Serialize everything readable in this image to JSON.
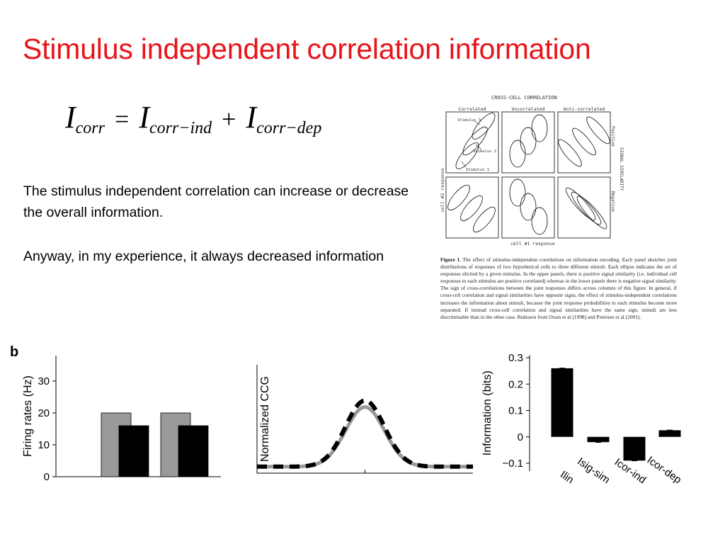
{
  "slide": {
    "title": "Stimulus independent correlation information",
    "paragraphs": [
      "The stimulus independent correlation can increase or decrease the overall information.",
      "Anyway, in my experience, it always decreased information"
    ]
  },
  "formula": {
    "lhs": "I",
    "lhs_sub": "corr",
    "op_eq": "=",
    "t1": "I",
    "t1_sub": "corr−ind",
    "op_plus": "+",
    "t2": "I",
    "t2_sub": "corr−dep"
  },
  "figure": {
    "title": "CROSS-CELL CORRELATION",
    "columns": [
      "Correlated",
      "Uncorrelated",
      "Anti-correlated"
    ],
    "rows": [
      "Positive",
      "Negative"
    ],
    "side_label": "SIGNAL SIMILARITY",
    "x_label": "cell #1 response",
    "y_label": "cell #2 response",
    "annotations": [
      "Stimulus 3",
      "Stimulus 2",
      "Stimulus 1"
    ],
    "caption_label": "Figure 1.",
    "caption_text": "The effect of stimulus-independent correlations on information encoding. Each panel sketches joint distributions of responses of two hypothetical cells to three different stimuli. Each ellipse indicates the set of responses elicited by a given stimulus. In the upper panels, there is positive signal similarity (i.e. individual cell responses to each stimulus are positive correlated) whereas in the lower panels there is negative signal similarity. The sign of cross-correlations between the joint responses differs across columns of this figure. In general, if cross-cell correlation and signal similarities have opposite signs, the effect of stimulus-independent correlations increases the information about stimuli, because the joint response probabilities to each stimulus become more separated. If instead cross-cell correlation and signal similarities have the same sign, stimuli are less discriminable than in the other case. Redrawn from Oram et al (1998) and Petersen et al (2001)."
  },
  "panel_label": "b",
  "chart_data": [
    {
      "type": "bar",
      "ylabel": "Firing rates (Hz)",
      "ylim": [
        0,
        38
      ],
      "yticks": [
        0,
        10,
        20,
        30
      ],
      "categories": [
        "",
        ""
      ],
      "series": [
        {
          "color": "#999999",
          "values": [
            20,
            20
          ]
        },
        {
          "color": "#000000",
          "values": [
            16,
            16
          ]
        }
      ],
      "grid": false
    },
    {
      "type": "line",
      "ylabel": "Normalized CCG",
      "xlim": [
        -5,
        5
      ],
      "ylim": [
        0,
        1
      ],
      "series": [
        {
          "style": "solid",
          "color": "#999999",
          "baseline": 0.06,
          "peak": 0.55,
          "center": 0,
          "width": 0.9
        },
        {
          "style": "dashed",
          "color": "#000000",
          "baseline": 0.06,
          "peak": 0.61,
          "center": 0,
          "width": 0.9
        }
      ],
      "grid": false
    },
    {
      "type": "bar",
      "ylabel": "Information (bits)",
      "ylim": [
        -0.13,
        0.31
      ],
      "yticks": [
        -0.1,
        0,
        0.1,
        0.2,
        0.3
      ],
      "ytick_labels": [
        "−0.1",
        "0",
        "0.1",
        "0.2",
        "0.3"
      ],
      "categories": [
        "Ilin",
        "Isig-sim",
        "Icor-ind",
        "Icor-dep"
      ],
      "values": [
        0.26,
        -0.02,
        -0.09,
        0.025
      ],
      "color": "#000000",
      "grid": false
    }
  ]
}
